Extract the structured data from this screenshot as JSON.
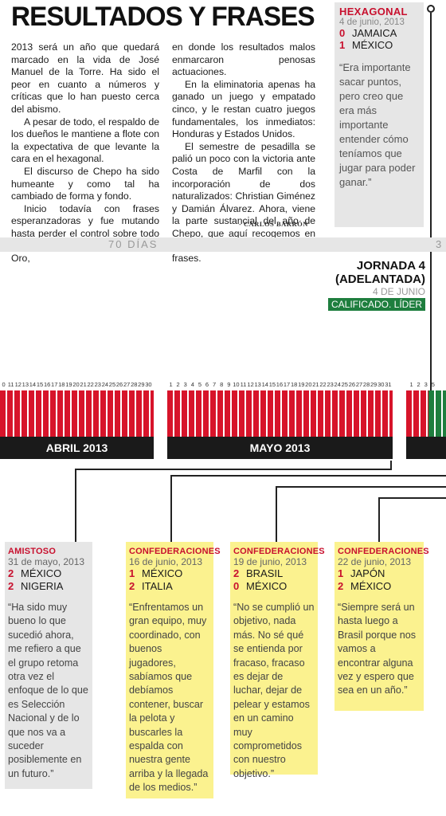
{
  "headline": "RESULTADOS Y FRASES",
  "article": {
    "col1": [
      "2013 será un año que quedará marcado en la vida de José Manuel de la Torre. Ha sido el peor en cuanto a números y críticas que lo han puesto cerca del abismo.",
      "A pesar de todo, el respaldo de los dueños le mantiene a flote con la expectativa de que levante la cara en el hexagonal.",
      "El discurso de Chepo ha sido humeante y como tal ha cambiado de forma y fondo.",
      "Inicio todavía con frases esperanzadoras y fue mutando hasta perder el control sobre todo en Copa Confederaciones y Copa Oro,"
    ],
    "col2": [
      "en donde los resultados malos enmarcaron penosas actuaciones.",
      "En la eliminatoria apenas ha ganado un juego y empatado cinco, y le restan cuatro juegos fundamentales, los inmediatos: Honduras y Estados Unidos.",
      "El semestre de pesadilla se palió un poco con la victoria ante Costa de Marfil con la incorporación de dos naturalizados: Christian Giménez y Damián Álvarez. Ahora, viene la parte sustancial del año de Chepo, que aquí recogemos en sus resultados y algunas de sus frases."
    ],
    "byline": "- CARLOS BARRÓN"
  },
  "hexagonal": {
    "title": "HEXAGONAL",
    "date": "4 de junio, 2013",
    "team1_score": "0",
    "team1": "JAMAICA",
    "team2_score": "1",
    "team2": "MÉXICO",
    "quote": "“Era importante sacar puntos, pero creo que era más importante entender cómo teníamos que jugar para poder ganar.”"
  },
  "timeline": {
    "days_label": "70  DÍAS",
    "days_right": "3",
    "jornada_line1": "JORNADA 4",
    "jornada_line2": "(ADELANTADA)",
    "jornada_date": "4 DE JUNIO",
    "badge": "CALIFICADO. LÍDER",
    "april_label": "ABRIL 2013",
    "may_label": "MAYO 2013",
    "april_ticks": [
      "0",
      "11",
      "12",
      "13",
      "14",
      "15",
      "16",
      "17",
      "18",
      "19",
      "20",
      "21",
      "22",
      "23",
      "24",
      "25",
      "26",
      "27",
      "28",
      "29",
      "30"
    ],
    "may_ticks": [
      "1",
      "2",
      "3",
      "4",
      "5",
      "6",
      "7",
      "8",
      "9",
      "10",
      "11",
      "12",
      "13",
      "14",
      "15",
      "16",
      "17",
      "18",
      "19",
      "20",
      "21",
      "22",
      "23",
      "24",
      "25",
      "26",
      "27",
      "28",
      "29",
      "30",
      "31"
    ],
    "june_ticks": [
      "1",
      "2",
      "3",
      "5"
    ]
  },
  "cards": [
    {
      "title": "AMISTOSO",
      "date": "31 de mayo, 2013",
      "s1": "2",
      "t1": "MÉXICO",
      "s2": "2",
      "t2": "NIGERIA",
      "quote": "“Ha sido muy bueno lo que sucedió ahora, me refiero a que el grupo retoma otra vez el enfoque de lo que es Selección Nacional y de lo que nos va a suceder posiblemente en un futuro.”"
    },
    {
      "title": "CONFEDERACIONES",
      "date": "16 de junio, 2013",
      "s1": "1",
      "t1": "MÉXICO",
      "s2": "2",
      "t2": "ITALIA",
      "quote": "“Enfrentamos un gran equipo, muy coordinado, con buenos jugadores, sabíamos que debíamos contener, buscar la pelota y buscarles la espalda con nuestra gente arriba y la llegada de los medios.”"
    },
    {
      "title": "CONFEDERACIONES",
      "date": "19 de junio, 2013",
      "s1": "2",
      "t1": "BRASIL",
      "s2": "0",
      "t2": "MÉXICO",
      "quote": "“No se cumplió un objetivo, nada más. No sé qué se entienda por fracaso, fracaso es dejar de luchar, dejar de pelear y estamos en un camino muy comprometidos con nuestro objetivo.”"
    },
    {
      "title": "CONFEDERACIONES",
      "date": "22 de junio, 2013",
      "s1": "1",
      "t1": "JAPÓN",
      "s2": "2",
      "t2": "MÉXICO",
      "quote": "“Siempre será un hasta luego a Brasil porque nos vamos a encontrar alguna vez y espero que sea en un año.”"
    }
  ]
}
